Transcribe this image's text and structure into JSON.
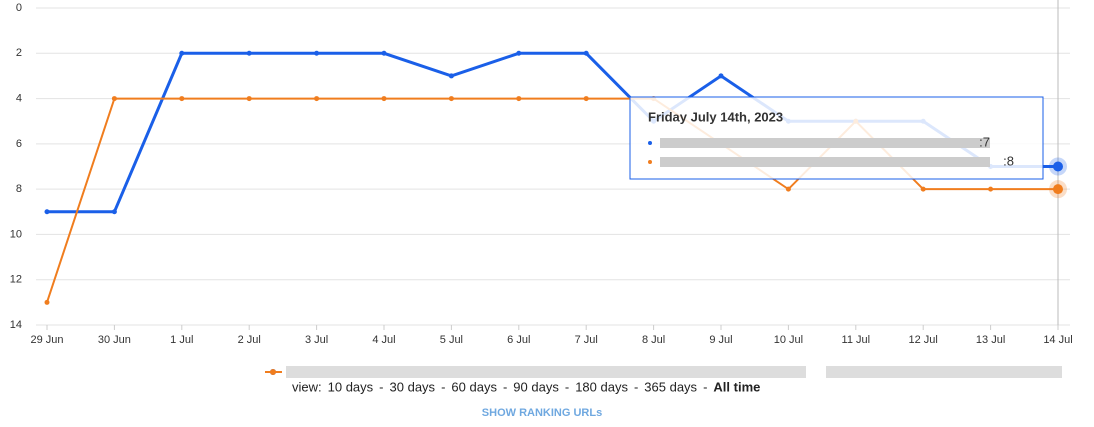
{
  "chart_data": {
    "type": "line",
    "categories": [
      "29 Jun",
      "30 Jun",
      "1 Jul",
      "2 Jul",
      "3 Jul",
      "4 Jul",
      "5 Jul",
      "6 Jul",
      "7 Jul",
      "8 Jul",
      "9 Jul",
      "10 Jul",
      "11 Jul",
      "12 Jul",
      "13 Jul",
      "14 Jul"
    ],
    "series": [
      {
        "color": "#1a5fe8",
        "values": [
          9,
          9,
          2,
          2,
          2,
          2,
          3,
          2,
          2,
          5,
          3,
          5,
          5,
          5,
          7,
          7
        ]
      },
      {
        "color": "#f07d1e",
        "values": [
          13,
          4,
          4,
          4,
          4,
          4,
          4,
          4,
          4,
          4,
          6,
          8,
          5,
          8,
          8,
          8
        ]
      }
    ],
    "ylim": [
      0,
      14
    ],
    "yticks": [
      0,
      2,
      4,
      6,
      8,
      10,
      12,
      14
    ],
    "y_inverted": true,
    "grid": true,
    "tooltip": {
      "title": "Friday July 14th, 2023",
      "labels": [
        ":7",
        ":8"
      ]
    }
  },
  "view_label": "view:",
  "view_options": [
    "10 days",
    "30 days",
    "60 days",
    "90 days",
    "180 days",
    "365 days",
    "All time"
  ],
  "separator": "-",
  "link": "SHOW RANKING URLs"
}
